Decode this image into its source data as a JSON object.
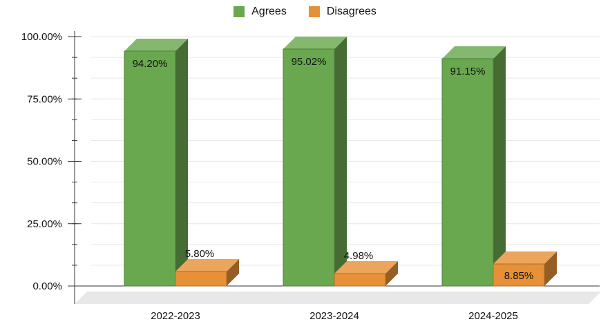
{
  "chart_data": {
    "type": "bar",
    "categories": [
      "2022-2023",
      "2023-2024",
      "2024-2025"
    ],
    "series": [
      {
        "name": "Agrees",
        "values": [
          94.2,
          95.02,
          91.15
        ],
        "labels": [
          "94.20%",
          "95.02%",
          "91.15%"
        ],
        "color": "#6aa84f"
      },
      {
        "name": "Disagrees",
        "values": [
          5.8,
          4.98,
          8.85
        ],
        "labels": [
          "5.80%",
          "4.98%",
          "8.85%"
        ],
        "color": "#e69138"
      }
    ],
    "yticks": [
      "0.00%",
      "25.00%",
      "50.00%",
      "75.00%",
      "100.00%"
    ],
    "ylim": [
      0,
      100
    ],
    "grid": true,
    "legend_position": "top-center",
    "title": "",
    "xlabel": "",
    "ylabel": ""
  }
}
